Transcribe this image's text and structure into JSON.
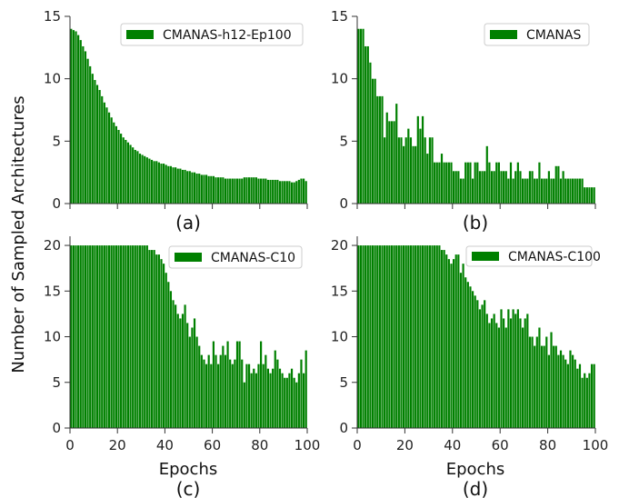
{
  "figure": {
    "ylabel": "Number of Sampled Architectures",
    "bar_color": "#008000"
  },
  "chart_data": [
    {
      "type": "bar",
      "panel_label": "(a)",
      "legend": "CMANAS-h12-Ep100",
      "legend_position": "top-right",
      "xlabel": "",
      "ylim": [
        0,
        15
      ],
      "yticks": [
        0,
        5,
        10,
        15
      ],
      "xticks": [],
      "epochs": [
        1,
        100
      ],
      "values": [
        14.0,
        13.9,
        13.8,
        13.5,
        13.1,
        12.6,
        12.2,
        11.6,
        11.0,
        10.4,
        9.9,
        9.5,
        9.1,
        8.6,
        8.1,
        7.7,
        7.3,
        6.9,
        6.5,
        6.2,
        5.9,
        5.6,
        5.3,
        5.1,
        4.9,
        4.7,
        4.5,
        4.3,
        4.2,
        4.0,
        3.9,
        3.8,
        3.7,
        3.6,
        3.5,
        3.4,
        3.4,
        3.3,
        3.2,
        3.2,
        3.1,
        3.0,
        3.0,
        2.9,
        2.9,
        2.8,
        2.8,
        2.7,
        2.7,
        2.6,
        2.6,
        2.5,
        2.5,
        2.4,
        2.4,
        2.3,
        2.3,
        2.3,
        2.2,
        2.2,
        2.2,
        2.1,
        2.1,
        2.1,
        2.1,
        2.0,
        2.0,
        2.0,
        2.0,
        2.0,
        2.0,
        2.0,
        2.0,
        2.1,
        2.1,
        2.1,
        2.1,
        2.1,
        2.1,
        2.0,
        2.0,
        2.0,
        2.0,
        1.9,
        1.9,
        1.9,
        1.9,
        1.9,
        1.8,
        1.8,
        1.8,
        1.8,
        1.8,
        1.7,
        1.7,
        1.8,
        1.9,
        2.0,
        2.0,
        1.8
      ]
    },
    {
      "type": "bar",
      "panel_label": "(b)",
      "legend": "CMANAS",
      "legend_position": "top-right",
      "xlabel": "",
      "ylim": [
        0,
        15
      ],
      "yticks": [
        0,
        5,
        10,
        15
      ],
      "xticks": [],
      "epochs": [
        1,
        100
      ],
      "values": [
        14.0,
        14.0,
        14.0,
        12.6,
        12.6,
        11.3,
        10.0,
        10.0,
        8.6,
        8.6,
        8.6,
        5.3,
        7.3,
        6.6,
        6.6,
        6.6,
        8.0,
        5.3,
        5.3,
        4.6,
        5.3,
        6.0,
        5.3,
        4.6,
        4.6,
        7.0,
        6.0,
        7.0,
        5.3,
        4.0,
        5.3,
        5.3,
        3.3,
        3.3,
        3.3,
        4.0,
        3.3,
        3.3,
        3.3,
        3.3,
        2.6,
        2.6,
        2.6,
        2.0,
        2.0,
        3.3,
        3.3,
        3.3,
        2.0,
        3.3,
        3.3,
        2.6,
        2.6,
        2.6,
        4.6,
        3.3,
        2.6,
        2.6,
        3.3,
        3.3,
        2.6,
        2.6,
        2.6,
        2.0,
        3.3,
        2.0,
        2.6,
        3.3,
        2.6,
        2.0,
        2.0,
        2.0,
        2.6,
        2.6,
        2.0,
        2.0,
        3.3,
        2.0,
        2.0,
        2.0,
        2.6,
        2.0,
        2.0,
        3.0,
        3.0,
        2.0,
        2.6,
        2.0,
        2.0,
        2.0,
        2.0,
        2.0,
        2.0,
        2.0,
        2.0,
        1.3,
        1.3,
        1.3,
        1.3,
        1.3
      ]
    },
    {
      "type": "bar",
      "panel_label": "(c)",
      "legend": "CMANAS-C10",
      "legend_position": "top-right",
      "xlabel": "Epochs",
      "ylim": [
        0,
        21
      ],
      "yticks": [
        0,
        5,
        10,
        15,
        20
      ],
      "xticks": [
        0,
        20,
        40,
        60,
        80,
        100
      ],
      "epochs": [
        1,
        100
      ],
      "values": [
        20,
        20,
        20,
        20,
        20,
        20,
        20,
        20,
        20,
        20,
        20,
        20,
        20,
        20,
        20,
        20,
        20,
        20,
        20,
        20,
        20,
        20,
        20,
        20,
        20,
        20,
        20,
        20,
        20,
        20,
        20,
        20,
        20,
        19.5,
        19.5,
        19.5,
        19,
        19,
        18.5,
        18,
        17,
        16,
        15,
        14,
        13.5,
        12.5,
        12,
        12.5,
        13.5,
        11.5,
        10,
        11,
        12,
        10,
        9,
        8,
        7.5,
        7,
        8,
        7,
        9.5,
        8,
        7,
        8,
        9,
        8,
        9.5,
        7.5,
        7,
        7.5,
        9.5,
        9.5,
        7.5,
        5,
        7,
        7,
        6,
        6.5,
        6,
        7,
        9.5,
        7,
        8,
        6.5,
        6,
        6.5,
        8.5,
        7.5,
        6.5,
        6,
        5.5,
        5.5,
        6,
        6.5,
        5.5,
        5,
        6,
        7.5,
        6,
        8.5
      ]
    },
    {
      "type": "bar",
      "panel_label": "(d)",
      "legend": "CMANAS-C100",
      "legend_position": "top-right",
      "xlabel": "Epochs",
      "ylim": [
        0,
        21
      ],
      "yticks": [
        0,
        5,
        10,
        15,
        20
      ],
      "xticks": [
        0,
        20,
        40,
        60,
        80,
        100
      ],
      "epochs": [
        1,
        100
      ],
      "values": [
        20,
        20,
        20,
        20,
        20,
        20,
        20,
        20,
        20,
        20,
        20,
        20,
        20,
        20,
        20,
        20,
        20,
        20,
        20,
        20,
        20,
        20,
        20,
        20,
        20,
        20,
        20,
        20,
        20,
        20,
        20,
        20,
        20,
        20,
        20,
        19.5,
        19.5,
        19,
        18.5,
        18,
        18.5,
        19,
        19,
        17,
        18,
        16.5,
        16,
        15.5,
        15,
        14.5,
        14,
        13,
        13.5,
        14,
        12.5,
        11.5,
        12,
        12.5,
        11.5,
        11,
        13,
        12,
        11,
        13,
        12,
        13,
        12.5,
        13,
        12,
        11,
        12,
        12.5,
        10,
        10,
        9,
        10,
        11,
        9,
        9,
        10,
        8,
        10.5,
        9,
        9,
        8,
        8.5,
        8,
        7.5,
        7,
        8.5,
        8,
        7.5,
        6.5,
        7,
        5.5,
        6,
        5.5,
        6,
        7,
        7
      ]
    }
  ]
}
